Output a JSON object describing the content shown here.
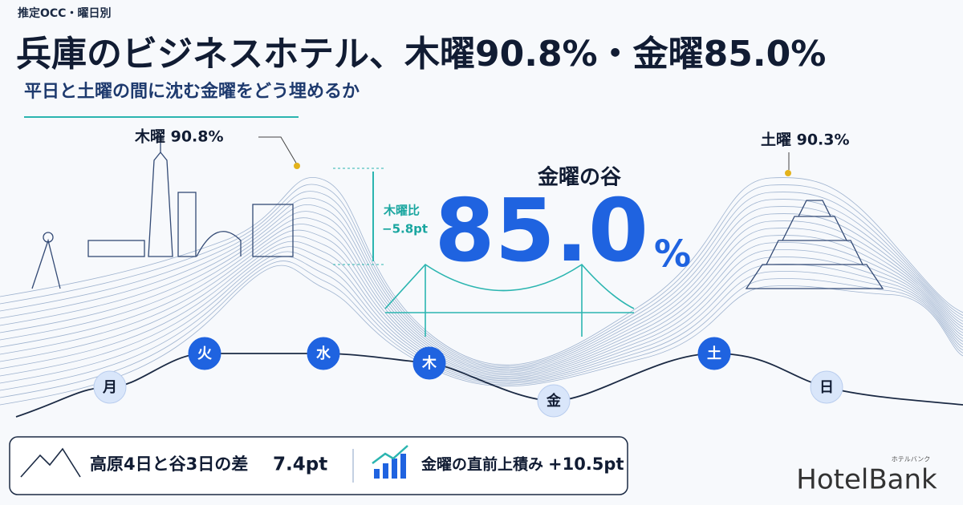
{
  "header": {
    "kicker": "推定OCC・曜日別",
    "title": "兵庫のビジネスホテル、木曜90.8%・金曜85.0%",
    "subtitle": "平日と土曜の間に沈む金曜をどう埋めるか"
  },
  "callouts": {
    "thursday": "木曜 90.8%",
    "saturday": "土曜 90.3%",
    "diff_label": "木曜比",
    "diff_value": "−5.8pt"
  },
  "valley": {
    "label": "金曜の谷",
    "value": "85.0",
    "unit": "%"
  },
  "days": [
    "月",
    "火",
    "水",
    "木",
    "金",
    "土",
    "日"
  ],
  "footer": {
    "gap_label": "高原4日と谷3日の差",
    "gap_value": "7.4pt",
    "lift_label": "金曜の直前上積み",
    "lift_value": "+10.5pt"
  },
  "logo": {
    "name": "HotelBank",
    "kana": "ホテルバンク"
  }
}
